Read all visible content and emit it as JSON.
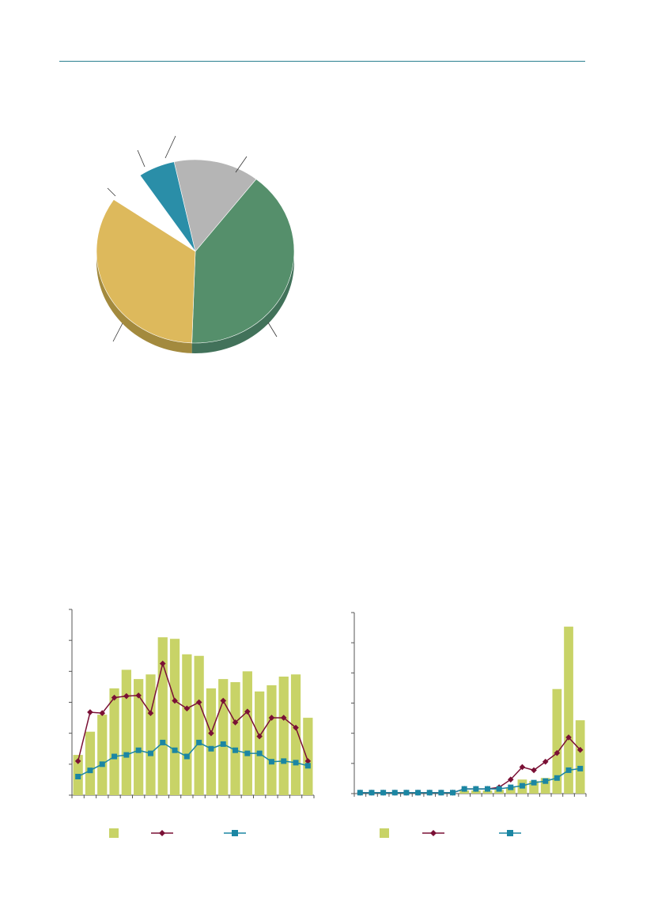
{
  "colors": {
    "rule": "#2a7f8f",
    "pie": [
      "#558f6b",
      "#ddb95c",
      "#ffffff",
      "#2a8ea8",
      "#b5b5b5"
    ],
    "pie_side": [
      "#42725a",
      "#a38a3e",
      "#e6e6e6",
      "#1f6a7e",
      "#8c8c8c"
    ],
    "bar": "#c8d367",
    "line_a": "#7a1035",
    "line_b": "#1b86a3",
    "axis": "#555555"
  },
  "chart_data": [
    {
      "type": "pie",
      "values": [
        40,
        34,
        6,
        6,
        14
      ],
      "labels": [
        "",
        "",
        "",
        "",
        ""
      ],
      "legend": "none"
    },
    {
      "type": "bar",
      "categories": [
        "",
        "",
        "",
        "",
        "",
        "",
        "",
        "",
        "",
        "",
        "",
        "",
        "",
        "",
        "",
        "",
        "",
        "",
        "",
        ""
      ],
      "series": [
        {
          "kind": "bar",
          "values": [
            13,
            20.5,
            26,
            34.5,
            40.5,
            37.5,
            39,
            51,
            50.5,
            45.5,
            45,
            34.5,
            37.5,
            36.5,
            40,
            33.5,
            35.5,
            38.3,
            39,
            25
          ]
        },
        {
          "kind": "line",
          "marker": "diamond",
          "values": [
            11,
            26.8,
            26.5,
            31.5,
            32,
            32.2,
            26.5,
            42.5,
            30.5,
            28,
            30,
            20,
            30.5,
            23.5,
            27,
            19,
            25,
            25,
            21.8,
            11
          ]
        },
        {
          "kind": "line",
          "marker": "square",
          "values": [
            6,
            8,
            10,
            12.5,
            13,
            14.5,
            13.5,
            17,
            14.5,
            12.5,
            17,
            15,
            16.5,
            14.5,
            13.5,
            13.5,
            10.8,
            11,
            10.5,
            9.5
          ]
        }
      ],
      "ylim": [
        0,
        60
      ],
      "yticks": 6,
      "legend": "bottom"
    },
    {
      "type": "bar",
      "categories": [
        "",
        "",
        "",
        "",
        "",
        "",
        "",
        "",
        "",
        "",
        "",
        "",
        "",
        "",
        "",
        "",
        "",
        "",
        "",
        ""
      ],
      "series": [
        {
          "kind": "bar",
          "values": [
            0,
            0,
            0,
            0,
            0,
            0,
            0,
            0,
            0,
            1,
            1,
            1,
            1.2,
            2,
            4.5,
            4,
            5,
            33.5,
            53.5,
            23.5
          ]
        },
        {
          "kind": "line",
          "marker": "diamond",
          "values": [
            0.3,
            0.3,
            0.3,
            0.3,
            0.3,
            0.3,
            0.3,
            0.3,
            0.3,
            1.5,
            1.5,
            1.5,
            2,
            4.5,
            8.5,
            7.5,
            10.2,
            13,
            18,
            14
          ]
        },
        {
          "kind": "line",
          "marker": "square",
          "values": [
            0.3,
            0.3,
            0.3,
            0.3,
            0.3,
            0.3,
            0.3,
            0.3,
            0.3,
            1.5,
            1.5,
            1.5,
            1.5,
            2,
            2.5,
            3.5,
            4,
            5,
            7.5,
            8
          ]
        }
      ],
      "ylim": [
        0,
        58
      ],
      "yticks": 6,
      "legend": "bottom"
    }
  ]
}
